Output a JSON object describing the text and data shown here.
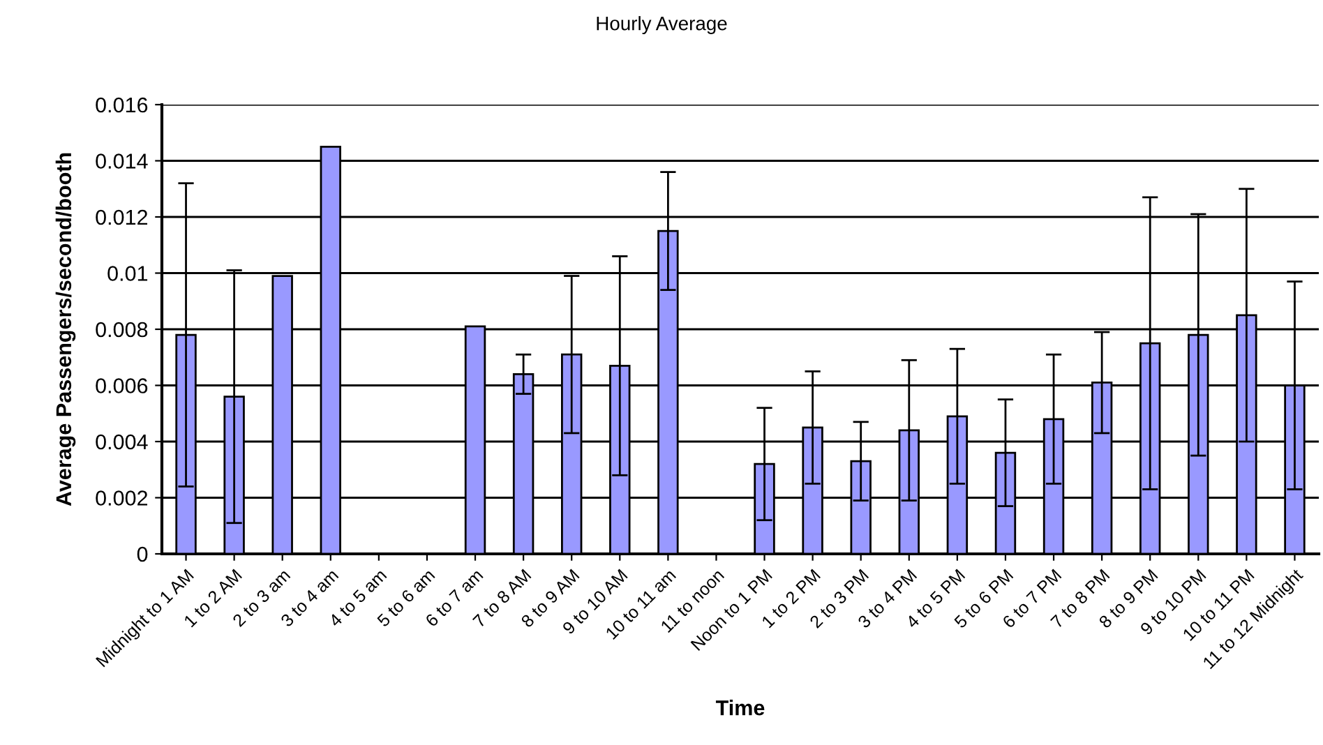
{
  "chart_data": {
    "type": "bar",
    "title": "Hourly Average",
    "xlabel": "Time",
    "ylabel": "Average Passengers/second/booth",
    "categories": [
      "Midnight to 1 AM",
      "1 to 2 AM",
      "2 to 3 am",
      "3 to 4 am",
      "4 to 5 am",
      "5 to 6 am",
      "6 to 7 am",
      "7 to 8 AM",
      "8 to 9 AM",
      "9 to 10 AM",
      "10 to 11 am",
      "11 to noon",
      "Noon to 1 PM",
      "1 to 2 PM",
      "2 to 3 PM",
      "3 to 4 PM",
      "4 to 5 PM",
      "5 to 6 PM",
      "6 to 7 PM",
      "7 to 8 PM",
      "8 to 9 PM",
      "9 to 10 PM",
      "10 to 11 PM",
      "11 to 12 Midnight"
    ],
    "series": [
      {
        "color": "#9999ff",
        "values": [
          0.0078,
          0.0056,
          0.0099,
          0.0145,
          null,
          null,
          0.0081,
          0.0064,
          0.0071,
          0.0067,
          0.0115,
          null,
          0.0032,
          0.0045,
          0.0033,
          0.0044,
          0.0049,
          0.0036,
          0.0048,
          0.0061,
          0.0075,
          0.0078,
          0.0085,
          0.006
        ],
        "errors": [
          0.0054,
          0.0045,
          null,
          null,
          null,
          null,
          null,
          0.0007,
          0.0028,
          0.0039,
          0.0021,
          null,
          0.002,
          0.002,
          0.0014,
          0.0025,
          0.0024,
          0.0019,
          0.0023,
          0.0018,
          0.0052,
          0.0043,
          0.0045,
          0.0037
        ]
      }
    ],
    "ylim": [
      0,
      0.016
    ],
    "yticks": [
      0,
      0.002,
      0.004,
      0.006,
      0.008,
      0.01,
      0.012,
      0.014,
      0.016
    ],
    "grid": "y",
    "legend": false
  }
}
